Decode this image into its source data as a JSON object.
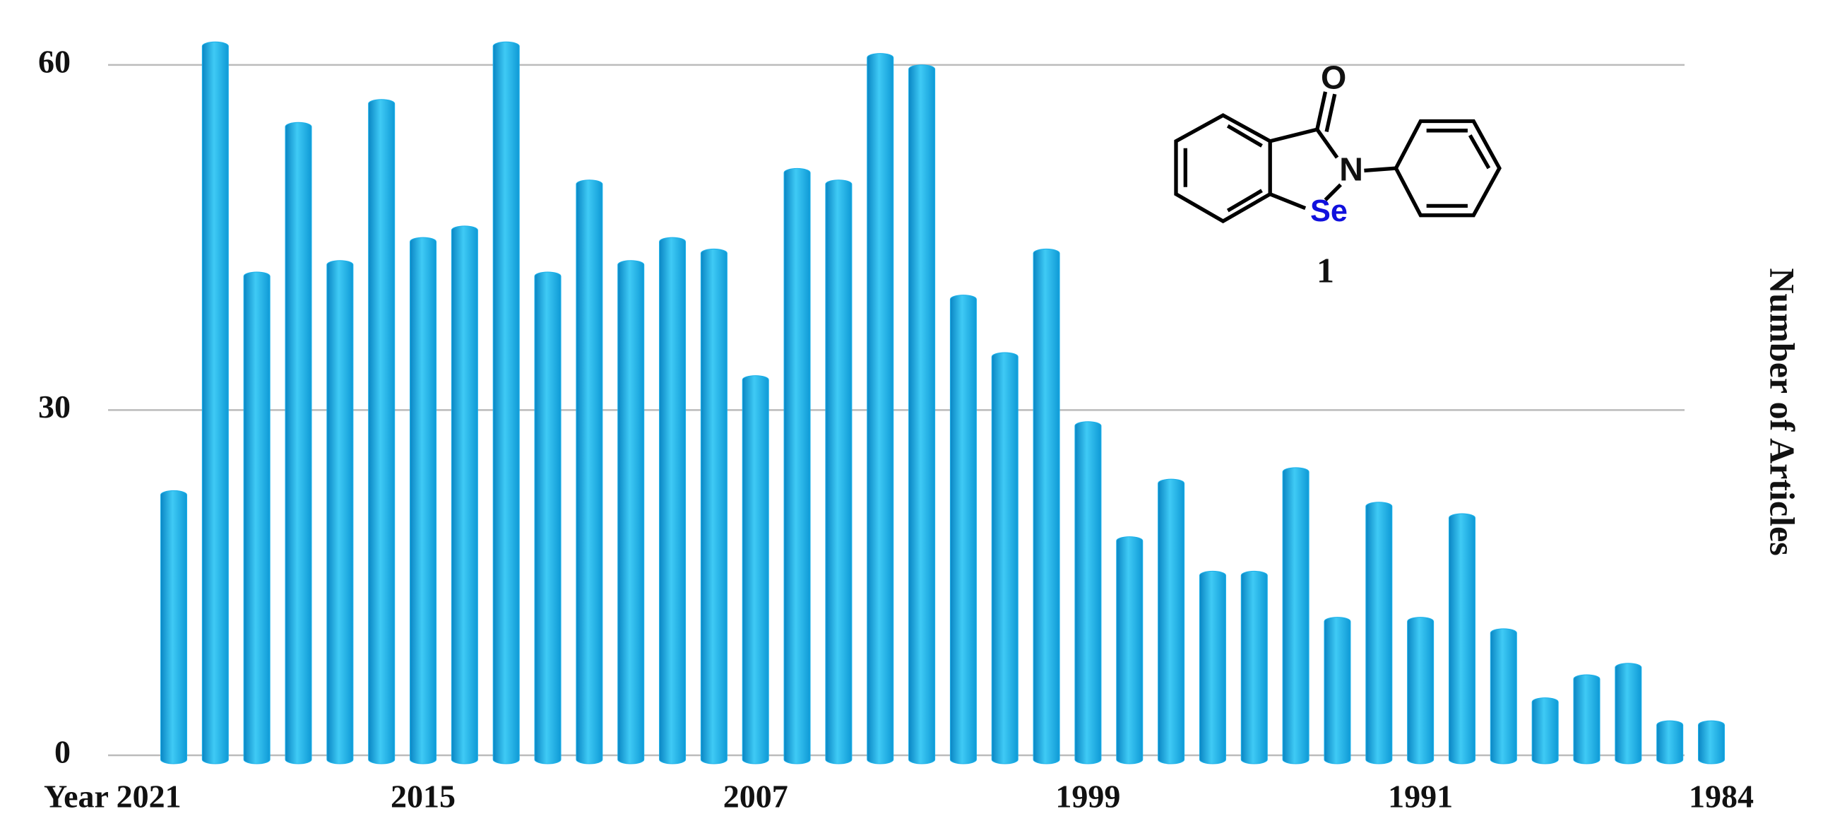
{
  "chart_data": {
    "type": "bar",
    "y_label": "Number of Articles",
    "categories": [
      "Year 2021",
      null,
      null,
      null,
      null,
      null,
      "2015",
      null,
      null,
      null,
      null,
      null,
      null,
      null,
      "2007",
      null,
      null,
      null,
      null,
      null,
      null,
      null,
      "1999",
      null,
      null,
      null,
      null,
      null,
      null,
      null,
      "1991",
      null,
      null,
      null,
      null,
      null,
      null,
      "1984"
    ],
    "values": [
      23,
      62,
      42,
      55,
      43,
      57,
      45,
      46,
      62,
      42,
      50,
      43,
      45,
      44,
      33,
      51,
      50,
      61,
      60,
      40,
      35,
      44,
      29,
      19,
      24,
      16,
      16,
      25,
      12,
      22,
      12,
      21,
      11,
      5,
      7,
      8,
      3,
      3
    ],
    "color": "#1ab0ea",
    "ylim": [
      0,
      63
    ],
    "yticks": [
      0,
      30,
      60
    ],
    "grid": true,
    "structure": {
      "atoms": {
        "oxygen": "O",
        "nitrogen": "N",
        "selenium": "Se"
      },
      "label": "1"
    }
  }
}
